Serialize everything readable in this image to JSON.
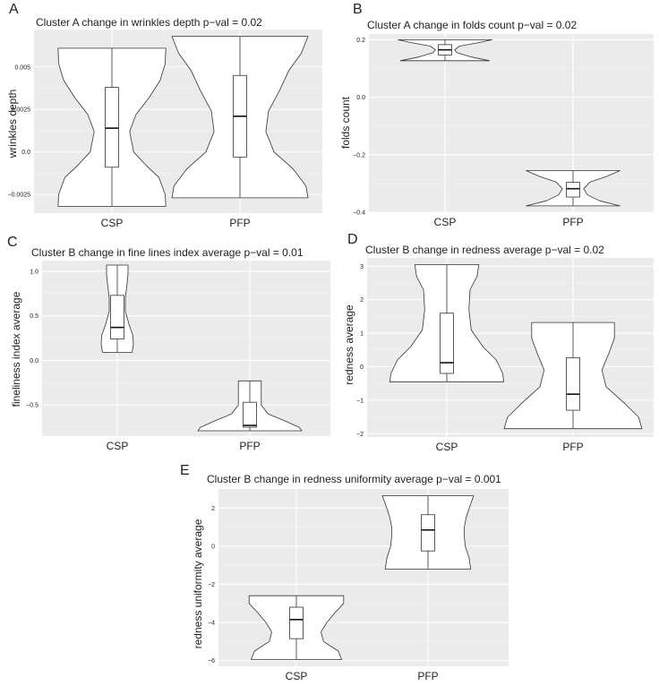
{
  "chart_data": [
    {
      "type": "violin",
      "panel_letter": "A",
      "title": "Cluster A change in wrinkles depth  p−val = 0.02",
      "xlabel": "",
      "ylabel": "wrinkles depth",
      "ylim": [
        -0.0036,
        0.0072
      ],
      "yticks": [
        -0.0025,
        0.0,
        0.0025,
        0.005
      ],
      "ytick_labels": [
        "−0.0025",
        "0.0",
        "0.0025",
        "0.005"
      ],
      "grid": true,
      "categories": [
        "CSP",
        "PFP"
      ],
      "violins": [
        {
          "category": "CSP",
          "min": -0.0032,
          "q1": -0.0009,
          "median": 0.0014,
          "q3": 0.0038,
          "max": 0.0061,
          "density": [
            {
              "y": -0.0032,
              "w": 0.94
            },
            {
              "y": -0.0025,
              "w": 0.93
            },
            {
              "y": -0.0015,
              "w": 0.82
            },
            {
              "y": -0.0008,
              "w": 0.6
            },
            {
              "y": 0.0,
              "w": 0.38
            },
            {
              "y": 0.0012,
              "w": 0.31
            },
            {
              "y": 0.0022,
              "w": 0.42
            },
            {
              "y": 0.0032,
              "w": 0.65
            },
            {
              "y": 0.0042,
              "w": 0.84
            },
            {
              "y": 0.0052,
              "w": 0.93
            },
            {
              "y": 0.0061,
              "w": 0.94
            }
          ]
        },
        {
          "category": "PFP",
          "min": -0.0027,
          "q1": -0.0003,
          "median": 0.0021,
          "q3": 0.0045,
          "max": 0.0068,
          "density": [
            {
              "y": -0.0027,
              "w": 1.0
            },
            {
              "y": -0.002,
              "w": 0.97
            },
            {
              "y": -0.001,
              "w": 0.78
            },
            {
              "y": 0.0,
              "w": 0.5
            },
            {
              "y": 0.0012,
              "w": 0.38
            },
            {
              "y": 0.0024,
              "w": 0.42
            },
            {
              "y": 0.0036,
              "w": 0.58
            },
            {
              "y": 0.0048,
              "w": 0.72
            },
            {
              "y": 0.0058,
              "w": 0.9
            },
            {
              "y": 0.0068,
              "w": 1.0
            }
          ]
        }
      ]
    },
    {
      "type": "violin",
      "panel_letter": "B",
      "title": "Cluster A change in folds count p−val = 0.02",
      "xlabel": "",
      "ylabel": "folds count",
      "ylim": [
        -0.4,
        0.22
      ],
      "yticks": [
        -0.4,
        -0.2,
        0.0,
        0.2
      ],
      "ytick_labels": [
        "−0.4",
        "−0.2",
        "0.0",
        "0.2"
      ],
      "grid": true,
      "categories": [
        "CSP",
        "PFP"
      ],
      "violins": [
        {
          "category": "CSP",
          "min": 0.127,
          "q1": 0.147,
          "median": 0.165,
          "q3": 0.183,
          "max": 0.2,
          "density": [
            {
              "y": 0.127,
              "w": 0.92
            },
            {
              "y": 0.14,
              "w": 0.55
            },
            {
              "y": 0.155,
              "w": 0.25
            },
            {
              "y": 0.165,
              "w": 0.2
            },
            {
              "y": 0.178,
              "w": 0.3
            },
            {
              "y": 0.19,
              "w": 0.7
            },
            {
              "y": 0.2,
              "w": 0.97
            }
          ]
        },
        {
          "category": "PFP",
          "min": -0.378,
          "q1": -0.347,
          "median": -0.318,
          "q3": -0.296,
          "max": -0.255,
          "density": [
            {
              "y": -0.378,
              "w": 0.97
            },
            {
              "y": -0.36,
              "w": 0.55
            },
            {
              "y": -0.34,
              "w": 0.3
            },
            {
              "y": -0.318,
              "w": 0.22
            },
            {
              "y": -0.295,
              "w": 0.35
            },
            {
              "y": -0.275,
              "w": 0.7
            },
            {
              "y": -0.255,
              "w": 0.97
            }
          ]
        }
      ]
    },
    {
      "type": "violin",
      "panel_letter": "C",
      "title": "Cluster B change in fine lines index average p−val = 0.01",
      "xlabel": "",
      "ylabel": "fineliness index average",
      "ylim": [
        -0.85,
        1.12
      ],
      "yticks": [
        -0.5,
        0.0,
        0.5,
        1.0
      ],
      "ytick_labels": [
        "−0.5",
        "0.0",
        "0.5",
        "1.0"
      ],
      "grid": true,
      "categories": [
        "CSP",
        "PFP"
      ],
      "violins": [
        {
          "category": "CSP",
          "min": 0.09,
          "q1": 0.24,
          "median": 0.37,
          "q3": 0.73,
          "max": 1.07,
          "density": [
            {
              "y": 0.09,
              "w": 0.55
            },
            {
              "y": 0.18,
              "w": 0.6
            },
            {
              "y": 0.28,
              "w": 0.58
            },
            {
              "y": 0.4,
              "w": 0.44
            },
            {
              "y": 0.55,
              "w": 0.3
            },
            {
              "y": 0.7,
              "w": 0.3
            },
            {
              "y": 0.85,
              "w": 0.36
            },
            {
              "y": 0.97,
              "w": 0.4
            },
            {
              "y": 1.07,
              "w": 0.4
            }
          ]
        },
        {
          "category": "PFP",
          "min": -0.79,
          "q1": -0.75,
          "median": -0.73,
          "q3": -0.47,
          "max": -0.23,
          "density": [
            {
              "y": -0.79,
              "w": 1.0
            },
            {
              "y": -0.75,
              "w": 0.95
            },
            {
              "y": -0.69,
              "w": 0.72
            },
            {
              "y": -0.6,
              "w": 0.35
            },
            {
              "y": -0.5,
              "w": 0.22
            },
            {
              "y": -0.4,
              "w": 0.22
            },
            {
              "y": -0.3,
              "w": 0.22
            },
            {
              "y": -0.23,
              "w": 0.22
            }
          ]
        }
      ]
    },
    {
      "type": "violin",
      "panel_letter": "D",
      "title": "Cluster B change in redness average p−val = 0.02",
      "xlabel": "",
      "ylabel": "redness average",
      "ylim": [
        -2.1,
        3.25
      ],
      "yticks": [
        -2,
        -1,
        0,
        1,
        2,
        3
      ],
      "ytick_labels": [
        "−2",
        "−1",
        "0",
        "1",
        "2",
        "3"
      ],
      "grid": true,
      "categories": [
        "CSP",
        "PFP"
      ],
      "violins": [
        {
          "category": "CSP",
          "min": -0.45,
          "q1": -0.2,
          "median": 0.12,
          "q3": 1.6,
          "max": 3.05,
          "density": [
            {
              "y": -0.45,
              "w": 0.98
            },
            {
              "y": -0.2,
              "w": 0.96
            },
            {
              "y": 0.2,
              "w": 0.85
            },
            {
              "y": 0.6,
              "w": 0.62
            },
            {
              "y": 1.1,
              "w": 0.42
            },
            {
              "y": 1.7,
              "w": 0.38
            },
            {
              "y": 2.3,
              "w": 0.4
            },
            {
              "y": 2.7,
              "w": 0.52
            },
            {
              "y": 3.05,
              "w": 0.55
            }
          ]
        },
        {
          "category": "PFP",
          "min": -1.85,
          "q1": -1.3,
          "median": -0.82,
          "q3": 0.27,
          "max": 1.32,
          "density": [
            {
              "y": -1.85,
              "w": 1.0
            },
            {
              "y": -1.5,
              "w": 0.95
            },
            {
              "y": -1.1,
              "w": 0.75
            },
            {
              "y": -0.6,
              "w": 0.48
            },
            {
              "y": -0.1,
              "w": 0.42
            },
            {
              "y": 0.4,
              "w": 0.52
            },
            {
              "y": 0.85,
              "w": 0.6
            },
            {
              "y": 1.32,
              "w": 0.6
            }
          ]
        }
      ]
    },
    {
      "type": "violin",
      "panel_letter": "E",
      "title": "Cluster B change in redness uniformity average p−val = 0.001",
      "xlabel": "",
      "ylabel": "redness uniformity average",
      "ylim": [
        -6.3,
        3.0
      ],
      "yticks": [
        -6,
        -4,
        -2,
        0,
        2
      ],
      "ytick_labels": [
        "−6",
        "−4",
        "−2",
        "0",
        "2"
      ],
      "grid": true,
      "categories": [
        "CSP",
        "PFP"
      ],
      "violins": [
        {
          "category": "CSP",
          "min": -5.95,
          "q1": -4.85,
          "median": -3.85,
          "q3": -3.2,
          "max": -2.6,
          "density": [
            {
              "y": -5.95,
              "w": 0.92
            },
            {
              "y": -5.5,
              "w": 0.85
            },
            {
              "y": -5.0,
              "w": 0.55
            },
            {
              "y": -4.5,
              "w": 0.5
            },
            {
              "y": -4.0,
              "w": 0.62
            },
            {
              "y": -3.5,
              "w": 0.78
            },
            {
              "y": -3.0,
              "w": 0.96
            },
            {
              "y": -2.6,
              "w": 0.96
            }
          ]
        },
        {
          "category": "PFP",
          "min": -1.2,
          "q1": -0.25,
          "median": 0.85,
          "q3": 1.65,
          "max": 2.65,
          "density": [
            {
              "y": -1.2,
              "w": 0.92
            },
            {
              "y": -0.6,
              "w": 0.88
            },
            {
              "y": 0.0,
              "w": 0.8
            },
            {
              "y": 0.5,
              "w": 0.78
            },
            {
              "y": 1.0,
              "w": 0.78
            },
            {
              "y": 1.5,
              "w": 0.82
            },
            {
              "y": 2.1,
              "w": 0.9
            },
            {
              "y": 2.65,
              "w": 0.98
            }
          ]
        }
      ]
    }
  ]
}
